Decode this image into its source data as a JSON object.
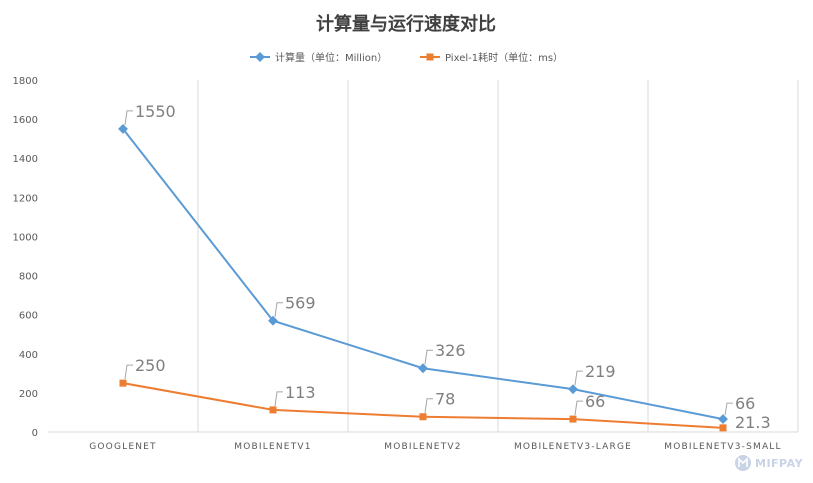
{
  "chart_data": {
    "type": "line",
    "title": "计算量与运行速度对比",
    "categories": [
      "GOOGLENET",
      "MOBILENETV1",
      "MOBILENETV2",
      "MOBILENETV3-LARGE",
      "MOBILENETV3-SMALL"
    ],
    "series": [
      {
        "name": "计算量（单位：Million）",
        "values": [
          1550,
          569,
          326,
          219,
          66
        ],
        "color": "#5b9bd5",
        "marker": "diamond"
      },
      {
        "name": "Pixel-1耗时（单位：ms）",
        "values": [
          250,
          113,
          78,
          66,
          21.3
        ],
        "color": "#ed7d31",
        "marker": "square"
      }
    ],
    "ylim": [
      0,
      1800
    ],
    "yticks": [
      0,
      200,
      400,
      600,
      800,
      1000,
      1200,
      1400,
      1600,
      1800
    ],
    "grid": "vertical",
    "legend": "top",
    "data_labels": true
  },
  "watermark": {
    "text": "MIFPAY"
  }
}
